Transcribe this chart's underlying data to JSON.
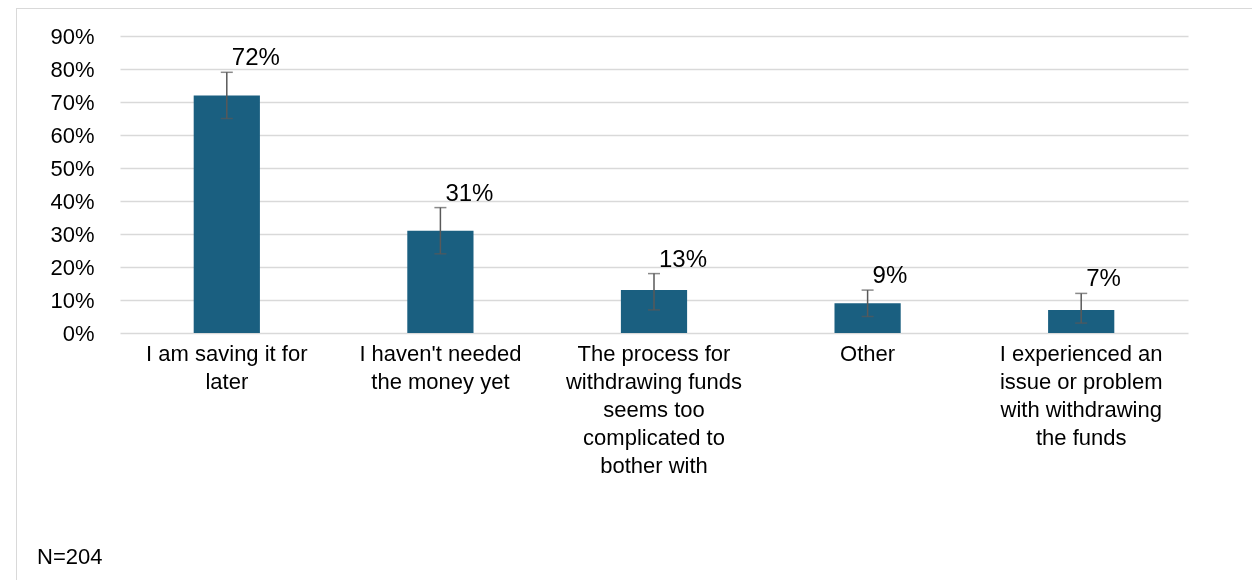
{
  "chart_data": {
    "type": "bar",
    "categories": [
      "I am saving it for later",
      "I haven't needed the money yet",
      "The process for withdrawing funds seems too complicated to bother with",
      "Other",
      "I experienced an issue or problem with withdrawing the funds"
    ],
    "values": [
      72,
      31,
      13,
      9,
      7
    ],
    "value_labels": [
      "72%",
      "31%",
      "13%",
      "9%",
      "7%"
    ],
    "errors": [
      [
        65,
        79
      ],
      [
        24,
        38
      ],
      [
        7,
        18
      ],
      [
        5,
        13
      ],
      [
        3,
        12
      ]
    ],
    "color": "#1a5f80",
    "ylim": [
      0,
      90
    ],
    "yticks": [
      {
        "value": 0,
        "label": "0%"
      },
      {
        "value": 10,
        "label": "10%"
      },
      {
        "value": 20,
        "label": "20%"
      },
      {
        "value": 30,
        "label": "30%"
      },
      {
        "value": 40,
        "label": "40%"
      },
      {
        "value": 50,
        "label": "50%"
      },
      {
        "value": 60,
        "label": "60%"
      },
      {
        "value": 70,
        "label": "70%"
      },
      {
        "value": 80,
        "label": "80%"
      },
      {
        "value": 90,
        "label": "90%"
      }
    ],
    "grid": "y",
    "annotations": [
      "N=204"
    ]
  }
}
